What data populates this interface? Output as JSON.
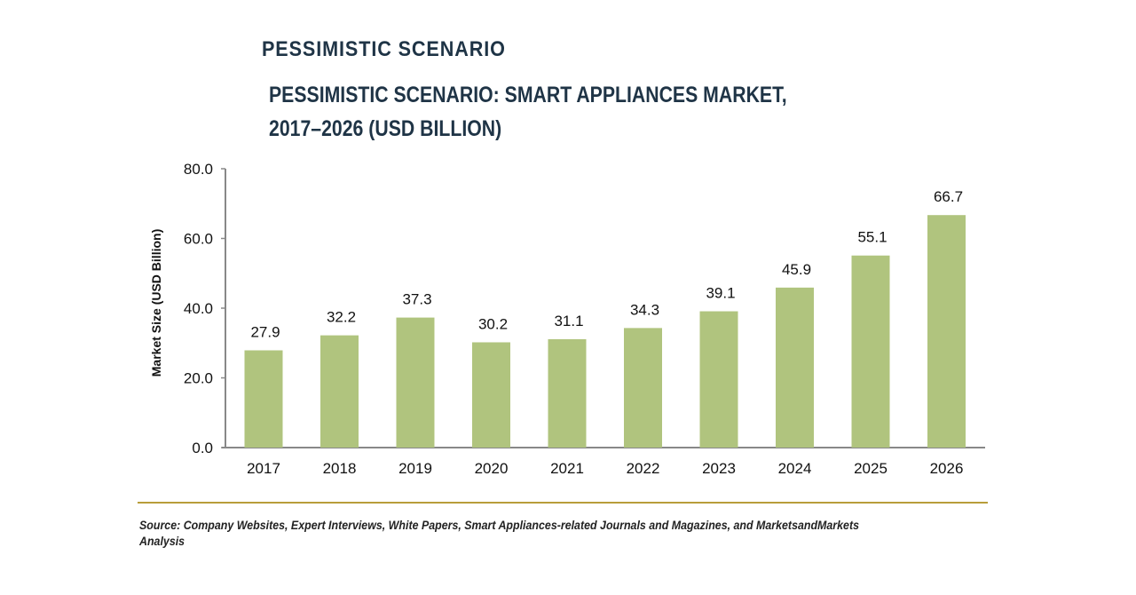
{
  "heading": "PESSIMISTIC SCENARIO",
  "chart_data": {
    "type": "bar",
    "title": "PESSIMISTIC SCENARIO: SMART APPLIANCES MARKET, 2017–2026 (USD BILLION)",
    "categories": [
      "2017",
      "2018",
      "2019",
      "2020",
      "2021",
      "2022",
      "2023",
      "2024",
      "2025",
      "2026"
    ],
    "values": [
      27.9,
      32.2,
      37.3,
      30.2,
      31.1,
      34.3,
      39.1,
      45.9,
      55.1,
      66.7
    ],
    "data_labels": [
      "27.9",
      "32.2",
      "37.3",
      "30.2",
      "31.1",
      "34.3",
      "39.1",
      "45.9",
      "55.1",
      "66.7"
    ],
    "ylabel": "Market Size (USD Billion)",
    "xlabel": "",
    "ylim": [
      0,
      80
    ],
    "yticks": [
      "0.0",
      "20.0",
      "40.0",
      "60.0",
      "80.0"
    ],
    "grid": false,
    "bar_color": "#b0c47e"
  },
  "source": "Source: Company Websites, Expert Interviews, White Papers, Smart Appliances-related Journals and Magazines, and MarketsandMarkets Analysis"
}
